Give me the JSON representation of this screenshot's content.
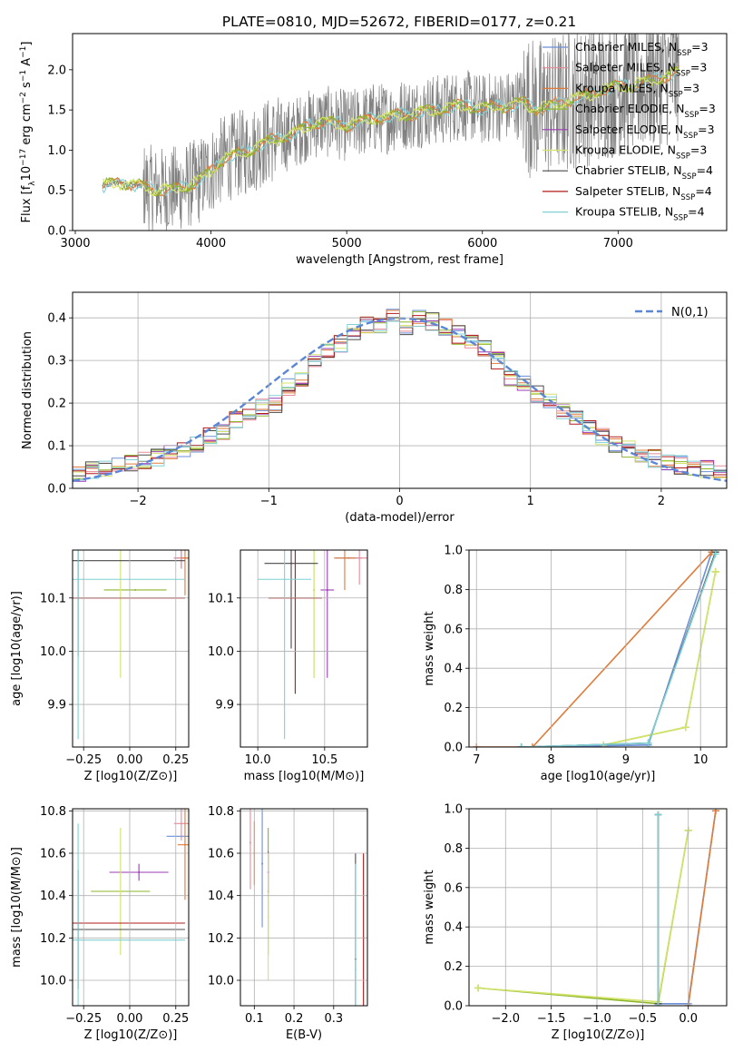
{
  "title": "PLATE=0810, MJD=52672, FIBERID=0177, z=0.21",
  "colors": {
    "chabrier_miles": "#6b8fd8",
    "salpeter_miles": "#e88a9a",
    "kroupa_miles": "#e07b3a",
    "chabrier_elodie": "#8cb62a",
    "salpeter_elodie": "#9b3bb5",
    "kroupa_elodie": "#d4e36a",
    "chabrier_stelib": "#4a4a4a",
    "salpeter_stelib": "#b21a1a",
    "kroupa_stelib": "#7fd1d6",
    "data": "#808080",
    "normal": "#5b86d6"
  },
  "chart_data": [
    {
      "id": "spectrum",
      "type": "line",
      "xlabel": "wavelength [Angstrom, rest frame]",
      "ylabel": "Flux [f_λ 10^-17 erg cm^-2 s^-1 A^-1]",
      "xlim": [
        2980,
        7800
      ],
      "ylim": [
        0,
        2.45
      ],
      "xticks": [
        3000,
        4000,
        5000,
        6000,
        7000
      ],
      "yticks": [
        0.0,
        0.5,
        1.0,
        1.5,
        2.0
      ],
      "legend": [
        {
          "label": "Chabrier MILES, N_SSP=3",
          "color_key": "chabrier_miles"
        },
        {
          "label": "Salpeter MILES, N_SSP=3",
          "color_key": "salpeter_miles"
        },
        {
          "label": "Kroupa MILES, N_SSP=3",
          "color_key": "kroupa_miles"
        },
        {
          "label": "Chabrier ELODIE, N_SSP=3",
          "color_key": "chabrier_elodie"
        },
        {
          "label": "Salpeter ELODIE, N_SSP=3",
          "color_key": "salpeter_elodie"
        },
        {
          "label": "Kroupa ELODIE, N_SSP=3",
          "color_key": "kroupa_elodie"
        },
        {
          "label": "Chabrier STELIB, N_SSP=4",
          "color_key": "chabrier_stelib"
        },
        {
          "label": "Salpeter STELIB, N_SSP=4",
          "color_key": "salpeter_stelib"
        },
        {
          "label": "Kroupa STELIB, N_SSP=4",
          "color_key": "kroupa_stelib"
        }
      ],
      "model_x": [
        3200,
        3300,
        3400,
        3500,
        3600,
        3700,
        3800,
        3900,
        4000,
        4100,
        4200,
        4300,
        4400,
        4500,
        4600,
        4700,
        4800,
        4900,
        5000,
        5100,
        5200,
        5300,
        5400,
        5500,
        5600,
        5700,
        5800,
        5900,
        6000,
        6100,
        6200,
        6300,
        6400,
        6500,
        6600,
        6700,
        6800,
        6900,
        7000,
        7100,
        7200,
        7300,
        7400,
        7500
      ],
      "model_y": [
        0.55,
        0.6,
        0.58,
        0.55,
        0.5,
        0.5,
        0.55,
        0.6,
        0.75,
        0.9,
        0.95,
        1.0,
        1.1,
        1.15,
        1.2,
        1.3,
        1.35,
        1.35,
        1.3,
        1.35,
        1.4,
        1.4,
        1.45,
        1.45,
        1.5,
        1.5,
        1.55,
        1.55,
        1.5,
        1.55,
        1.55,
        1.6,
        1.5,
        1.55,
        1.6,
        1.65,
        1.7,
        1.75,
        1.8,
        1.8,
        1.85,
        1.9,
        1.95,
        2.0
      ],
      "data_range_x": [
        3200,
        7450
      ]
    },
    {
      "id": "residuals",
      "type": "line",
      "xlabel": "(data-model)/error",
      "ylabel": "Normed distribution",
      "xlim": [
        -2.5,
        2.5
      ],
      "ylim": [
        0,
        0.46
      ],
      "xticks": [
        -2,
        -1,
        0,
        1,
        2
      ],
      "xtick_labels": [
        "−2",
        "−1",
        "0",
        "1",
        "2"
      ],
      "yticks": [
        0.0,
        0.1,
        0.2,
        0.3,
        0.4
      ],
      "legend": [
        {
          "label": "N(0,1)",
          "color_key": "normal",
          "style": "dashed"
        }
      ],
      "hist_bin_width": 0.1,
      "hist_values": [
        0.035,
        0.04,
        0.045,
        0.055,
        0.06,
        0.065,
        0.07,
        0.09,
        0.095,
        0.1,
        0.12,
        0.13,
        0.16,
        0.18,
        0.19,
        0.2,
        0.24,
        0.26,
        0.3,
        0.32,
        0.34,
        0.37,
        0.38,
        0.38,
        0.4,
        0.37,
        0.4,
        0.39,
        0.38,
        0.36,
        0.35,
        0.33,
        0.3,
        0.26,
        0.25,
        0.22,
        0.2,
        0.18,
        0.16,
        0.14,
        0.12,
        0.1,
        0.09,
        0.08,
        0.07,
        0.06,
        0.055,
        0.05,
        0.045,
        0.04
      ]
    },
    {
      "id": "age_vs_Z",
      "type": "scatter",
      "xlabel": "Z [log10(Z/Z⊙)]",
      "ylabel": "age [log10(age/yr)]",
      "xlim": [
        -0.31,
        0.32
      ],
      "ylim": [
        9.82,
        10.19
      ],
      "xticks": [
        -0.25,
        0.0,
        0.25
      ],
      "xtick_labels": [
        "−0.25",
        "0.00",
        "0.25"
      ],
      "yticks": [
        9.9,
        10.0,
        10.1
      ],
      "points": [
        {
          "x": 0.28,
          "y": 10.175,
          "xerr": 0.04,
          "yerr": 0.02,
          "color_key": "chabrier_miles"
        },
        {
          "x": 0.28,
          "y": 10.175,
          "xerr": 0.04,
          "yerr": 0.02,
          "color_key": "salpeter_miles"
        },
        {
          "x": 0.3,
          "y": 10.175,
          "xerr": 0.02,
          "yerr": 0.07,
          "color_key": "kroupa_miles"
        },
        {
          "x": 0.03,
          "y": 10.115,
          "xerr": 0.17,
          "yerr": 0.0,
          "color_key": "chabrier_elodie"
        },
        {
          "x": -0.05,
          "y": 10.115,
          "xerr": 0.0,
          "yerr": 0.165,
          "color_key": "kroupa_elodie"
        },
        {
          "x": -0.28,
          "y": 10.17,
          "xerr": 0.58,
          "yerr": 0.18,
          "color_key": "chabrier_stelib"
        },
        {
          "x": -0.28,
          "y": 10.1,
          "xerr": 0.58,
          "yerr": 0.0,
          "color_key": "salpeter_stelib"
        },
        {
          "x": -0.28,
          "y": 10.135,
          "xerr": 0.58,
          "yerr": 0.3,
          "color_key": "kroupa_stelib"
        }
      ]
    },
    {
      "id": "age_vs_mass",
      "type": "scatter",
      "xlabel": "mass [log10(M/M⊙)]",
      "ylabel": "",
      "xlim": [
        9.87,
        10.82
      ],
      "ylim": [
        9.82,
        10.19
      ],
      "xticks": [
        10.0,
        10.5
      ],
      "yticks": [
        9.9,
        10.0,
        10.1
      ],
      "points": [
        {
          "x": 10.68,
          "y": 10.175,
          "xerr": 0.1,
          "yerr": 0.0,
          "color_key": "chabrier_miles"
        },
        {
          "x": 10.76,
          "y": 10.175,
          "xerr": 0.1,
          "yerr": 0.05,
          "color_key": "salpeter_miles"
        },
        {
          "x": 10.65,
          "y": 10.175,
          "xerr": 0.08,
          "yerr": 0.06,
          "color_key": "kroupa_miles"
        },
        {
          "x": 10.42,
          "y": 10.115,
          "xerr": 0.0,
          "yerr": 0.165,
          "color_key": "chabrier_elodie"
        },
        {
          "x": 10.52,
          "y": 10.115,
          "xerr": 0.05,
          "yerr": 0.165,
          "color_key": "salpeter_elodie"
        },
        {
          "x": 10.42,
          "y": 10.115,
          "xerr": 0.0,
          "yerr": 0.165,
          "color_key": "kroupa_elodie"
        },
        {
          "x": 10.25,
          "y": 10.165,
          "xerr": 0.2,
          "yerr": 0.16,
          "color_key": "chabrier_stelib"
        },
        {
          "x": 10.28,
          "y": 10.1,
          "xerr": 0.2,
          "yerr": 0.18,
          "color_key": "salpeter_stelib"
        },
        {
          "x": 10.2,
          "y": 10.135,
          "xerr": 0.2,
          "yerr": 0.3,
          "color_key": "kroupa_stelib"
        }
      ]
    },
    {
      "id": "massweight_vs_age",
      "type": "line",
      "xlabel": "age [log10(age/yr)]",
      "ylabel": "mass weight",
      "xlim": [
        6.9,
        10.35
      ],
      "ylim": [
        0,
        1.0
      ],
      "xticks": [
        7,
        8,
        9,
        10
      ],
      "yticks": [
        0.0,
        0.2,
        0.4,
        0.6,
        0.8,
        1.0
      ],
      "series": [
        {
          "color_key": "chabrier_miles",
          "x": [
            7.6,
            9.3,
            10.15
          ],
          "y": [
            0.0,
            0.01,
            0.99
          ]
        },
        {
          "color_key": "kroupa_miles",
          "x": [
            7.0,
            7.75,
            10.15
          ],
          "y": [
            0.0,
            0.0,
            0.99
          ]
        },
        {
          "color_key": "chabrier_elodie",
          "x": [
            8.7,
            9.8,
            10.2
          ],
          "y": [
            0.01,
            0.1,
            0.89
          ]
        },
        {
          "color_key": "kroupa_elodie",
          "x": [
            8.7,
            9.8,
            10.2
          ],
          "y": [
            0.01,
            0.1,
            0.89
          ]
        },
        {
          "color_key": "chabrier_stelib",
          "x": [
            7.6,
            9.3,
            10.2
          ],
          "y": [
            0.0,
            0.02,
            0.99
          ]
        },
        {
          "color_key": "kroupa_stelib",
          "x": [
            7.6,
            9.3,
            10.2
          ],
          "y": [
            0.0,
            0.02,
            0.98
          ]
        }
      ]
    },
    {
      "id": "mass_vs_Z",
      "type": "scatter",
      "xlabel": "Z [log10(Z/Z⊙)]",
      "ylabel": "mass [log10(M/M⊙)]",
      "xlim": [
        -0.31,
        0.32
      ],
      "ylim": [
        9.88,
        10.81
      ],
      "xticks": [
        -0.25,
        0.0,
        0.25
      ],
      "xtick_labels": [
        "−0.25",
        "0.00",
        "0.25"
      ],
      "yticks": [
        10.0,
        10.2,
        10.4,
        10.6,
        10.8
      ],
      "points": [
        {
          "x": 0.28,
          "y": 10.68,
          "xerr": 0.08,
          "yerr": 0.0,
          "color_key": "chabrier_miles"
        },
        {
          "x": 0.28,
          "y": 10.74,
          "xerr": 0.04,
          "yerr": 0.08,
          "color_key": "salpeter_miles"
        },
        {
          "x": 0.3,
          "y": 10.64,
          "xerr": 0.04,
          "yerr": 0.26,
          "color_key": "kroupa_miles"
        },
        {
          "x": 0.05,
          "y": 10.51,
          "xerr": 0.16,
          "yerr": 0.04,
          "color_key": "salpeter_elodie"
        },
        {
          "x": -0.05,
          "y": 10.42,
          "xerr": 0.16,
          "yerr": 0.0,
          "color_key": "chabrier_elodie"
        },
        {
          "x": -0.05,
          "y": 10.42,
          "xerr": 0.0,
          "yerr": 0.3,
          "color_key": "kroupa_elodie"
        },
        {
          "x": -0.28,
          "y": 10.24,
          "xerr": 0.58,
          "yerr": 0.28,
          "color_key": "chabrier_stelib"
        },
        {
          "x": -0.28,
          "y": 10.27,
          "xerr": 0.58,
          "yerr": 0.0,
          "color_key": "salpeter_stelib"
        },
        {
          "x": -0.28,
          "y": 10.19,
          "xerr": 0.58,
          "yerr": 0.55,
          "color_key": "kroupa_stelib"
        }
      ]
    },
    {
      "id": "mass_vs_ebv",
      "type": "scatter",
      "xlabel": "E(B-V)",
      "ylabel": "",
      "xlim": [
        0.065,
        0.385
      ],
      "ylim": [
        9.88,
        10.81
      ],
      "xticks": [
        0.1,
        0.2,
        0.3
      ],
      "yticks": [
        10.0,
        10.2,
        10.4,
        10.6,
        10.8
      ],
      "points": [
        {
          "x": 0.12,
          "y": 10.55,
          "yerr": 0.3,
          "color_key": "chabrier_miles"
        },
        {
          "x": 0.09,
          "y": 10.65,
          "yerr": 0.22,
          "color_key": "salpeter_miles"
        },
        {
          "x": 0.1,
          "y": 10.6,
          "yerr": 0.15,
          "color_key": "kroupa_miles"
        },
        {
          "x": 0.135,
          "y": 10.42,
          "yerr": 0.3,
          "color_key": "chabrier_elodie"
        },
        {
          "x": 0.135,
          "y": 10.51,
          "yerr": 0.1,
          "color_key": "salpeter_elodie"
        },
        {
          "x": 0.135,
          "y": 10.3,
          "yerr": 0.3,
          "color_key": "kroupa_elodie"
        },
        {
          "x": 0.355,
          "y": 10.1,
          "yerr": 0.5,
          "color_key": "chabrier_stelib"
        },
        {
          "x": 0.375,
          "y": 10.2,
          "yerr": 0.4,
          "color_key": "salpeter_stelib"
        },
        {
          "x": 0.355,
          "y": 10.05,
          "yerr": 0.5,
          "color_key": "kroupa_stelib"
        }
      ]
    },
    {
      "id": "massweight_vs_Z",
      "type": "line",
      "xlabel": "Z [log10(Z/Z⊙)]",
      "ylabel": "mass weight",
      "xlim": [
        -2.4,
        0.42
      ],
      "ylim": [
        0,
        1.0
      ],
      "xticks": [
        -2.0,
        -1.5,
        -1.0,
        -0.5,
        0.0
      ],
      "xtick_labels": [
        "−2.0",
        "−1.5",
        "−1.0",
        "−0.5",
        "0.0"
      ],
      "yticks": [
        0.0,
        0.2,
        0.4,
        0.6,
        0.8,
        1.0
      ],
      "series": [
        {
          "color_key": "chabrier_miles",
          "x": [
            -0.33,
            0.0,
            0.3
          ],
          "y": [
            0.01,
            0.01,
            0.99
          ]
        },
        {
          "color_key": "kroupa_miles",
          "x": [
            0.0,
            0.3
          ],
          "y": [
            0.0,
            0.99
          ]
        },
        {
          "color_key": "chabrier_elodie",
          "x": [
            -2.3,
            -0.33,
            0.0
          ],
          "y": [
            0.09,
            0.01,
            0.89
          ]
        },
        {
          "color_key": "kroupa_elodie",
          "x": [
            -2.3,
            -0.33,
            0.0
          ],
          "y": [
            0.09,
            0.02,
            0.89
          ]
        },
        {
          "color_key": "chabrier_stelib",
          "x": [
            -0.33,
            -0.33
          ],
          "y": [
            0.01,
            0.97
          ]
        },
        {
          "color_key": "kroupa_stelib",
          "x": [
            -0.33,
            -0.33
          ],
          "y": [
            0.0,
            0.97
          ]
        }
      ]
    }
  ]
}
